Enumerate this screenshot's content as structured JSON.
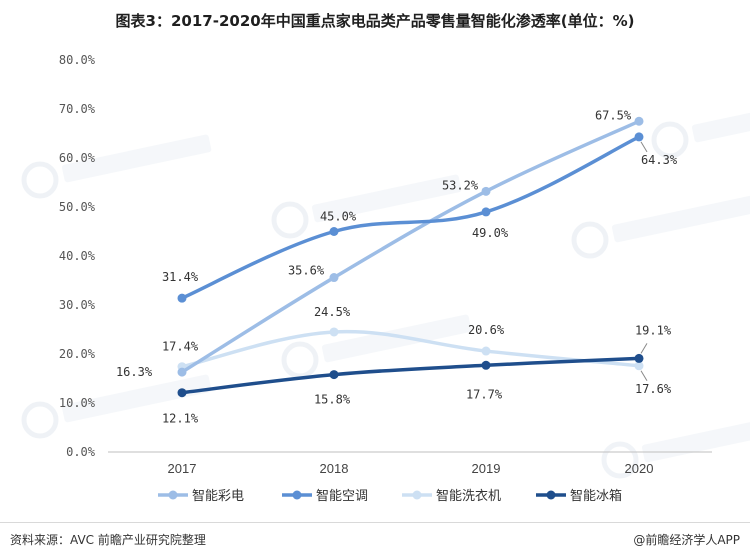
{
  "title": "图表3：2017-2020年中国重点家电品类产品零售量智能化渗透率(单位：%)",
  "chart_data": {
    "type": "line",
    "categories": [
      "2017",
      "2018",
      "2019",
      "2020"
    ],
    "ylim": [
      0,
      80
    ],
    "yticks": [
      "0.0%",
      "10.0%",
      "20.0%",
      "30.0%",
      "40.0%",
      "50.0%",
      "60.0%",
      "70.0%",
      "80.0%"
    ],
    "series": [
      {
        "name": "智能彩电",
        "color": "#9dbde6",
        "values": [
          16.3,
          35.6,
          53.2,
          67.5
        ],
        "labels": [
          "16.3%",
          "35.6%",
          "53.2%",
          "67.5%"
        ]
      },
      {
        "name": "智能空调",
        "color": "#5b8fd4",
        "values": [
          31.4,
          45.0,
          49.0,
          64.3
        ],
        "labels": [
          "31.4%",
          "45.0%",
          "49.0%",
          "64.3%"
        ]
      },
      {
        "name": "智能洗衣机",
        "color": "#cde0f3",
        "values": [
          17.4,
          24.5,
          20.6,
          17.6
        ],
        "labels": [
          "17.4%",
          "24.5%",
          "20.6%",
          "17.6%"
        ]
      },
      {
        "name": "智能冰箱",
        "color": "#1f4e8c",
        "values": [
          12.1,
          15.8,
          17.7,
          19.1
        ],
        "labels": [
          "12.1%",
          "15.8%",
          "17.7%",
          "19.1%"
        ]
      }
    ],
    "legend": "bottom"
  },
  "footer": {
    "source": "资料来源：AVC 前瞻产业研究院整理",
    "brand": "@前瞻经济学人APP"
  }
}
